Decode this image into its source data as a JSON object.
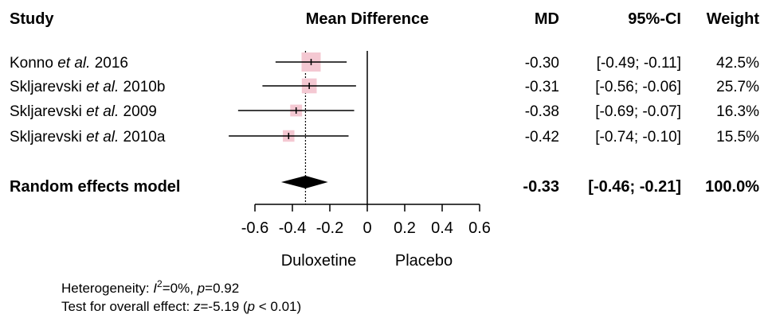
{
  "chart_data": {
    "type": "forest",
    "headers": {
      "study": "Study",
      "effect": "Mean Difference",
      "md": "MD",
      "ci": "95%-CI",
      "weight": "Weight"
    },
    "studies": [
      {
        "author": "Konno",
        "etal": "et al.",
        "year": "2016",
        "md": -0.3,
        "lower": -0.49,
        "upper": -0.11,
        "weight": 42.5,
        "md_label": "-0.30",
        "ci_label": "[-0.49; -0.11]",
        "weight_label": "42.5%"
      },
      {
        "author": "Skljarevski",
        "etal": "et al.",
        "year": "2010b",
        "md": -0.31,
        "lower": -0.56,
        "upper": -0.06,
        "weight": 25.7,
        "md_label": "-0.31",
        "ci_label": "[-0.56; -0.06]",
        "weight_label": "25.7%"
      },
      {
        "author": "Skljarevski",
        "etal": "et al.",
        "year": "2009",
        "md": -0.38,
        "lower": -0.69,
        "upper": -0.07,
        "weight": 16.3,
        "md_label": "-0.38",
        "ci_label": "[-0.69; -0.07]",
        "weight_label": "16.3%"
      },
      {
        "author": "Skljarevski",
        "etal": "et al.",
        "year": "2010a",
        "md": -0.42,
        "lower": -0.74,
        "upper": -0.1,
        "weight": 15.5,
        "md_label": "-0.42",
        "ci_label": "[-0.74; -0.10]",
        "weight_label": "15.5%"
      }
    ],
    "pooled": {
      "label": "Random effects model",
      "md": -0.33,
      "lower": -0.46,
      "upper": -0.21,
      "md_label": "-0.33",
      "ci_label": "[-0.46; -0.21]",
      "weight_label": "100.0%"
    },
    "xlim": [
      -0.6,
      0.6
    ],
    "ticks": [
      -0.6,
      -0.4,
      -0.2,
      0,
      0.2,
      0.4,
      0.6
    ],
    "tick_labels": [
      "-0.6",
      "-0.4",
      "-0.2",
      "0",
      "0.2",
      "0.4",
      "0.6"
    ],
    "xlabel_left": "Duloxetine",
    "xlabel_right": "Placebo",
    "heterogeneity": {
      "prefix": "Heterogeneity: ",
      "i2_sym": "I",
      "i2_sup": "2",
      "i2_val": "=0%, ",
      "p_sym": "p",
      "p_val": "=0.92"
    },
    "overall_test": {
      "prefix": "Test for overall effect: ",
      "z_sym": "z",
      "z_val": "=-5.19 (",
      "p_sym": "p",
      "p_val": " < 0.01)"
    },
    "colors": {
      "box": "#f4c8d2",
      "line": "#000000",
      "diamond": "#000000"
    }
  }
}
